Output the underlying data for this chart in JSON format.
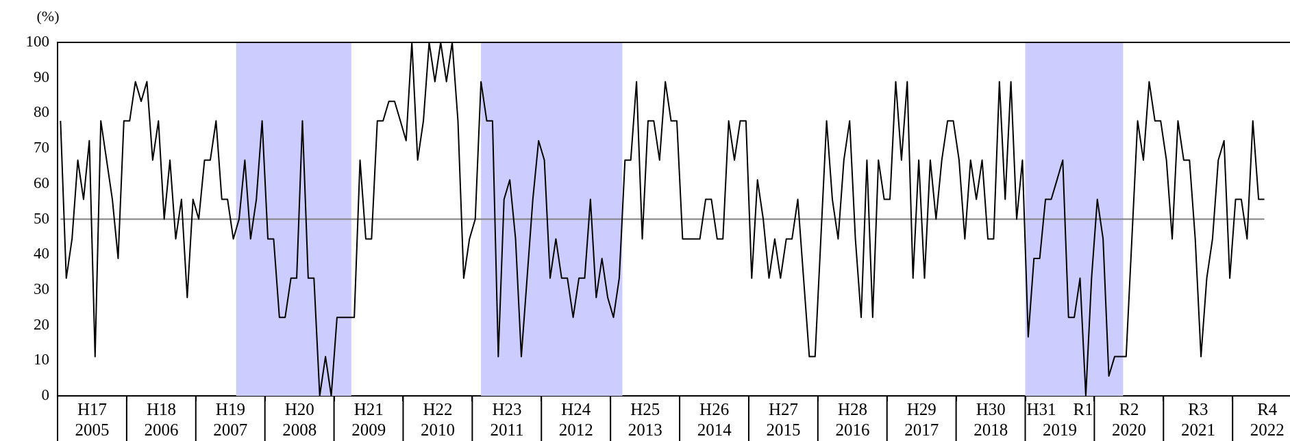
{
  "chart_data": {
    "type": "line",
    "ylabel": "(%)",
    "xlim": [
      "2004-12-16",
      "2022-10-15"
    ],
    "xticks": [
      {
        "value": "2005-06-16",
        "label": "H17\n2005"
      },
      {
        "value": "2005-12-16",
        "label": null
      },
      {
        "value": "2006-06-16",
        "label": "H18\n2006"
      },
      {
        "value": "2006-12-16",
        "label": null
      },
      {
        "value": "2007-06-16",
        "label": "H19\n2007"
      },
      {
        "value": "2007-12-16",
        "label": null
      },
      {
        "value": "2008-06-16",
        "label": "H20\n2008"
      },
      {
        "value": "2008-12-16",
        "label": null
      },
      {
        "value": "2009-06-16",
        "label": "H21\n2009"
      },
      {
        "value": "2009-12-16",
        "label": null
      },
      {
        "value": "2010-06-16",
        "label": "H22\n2010"
      },
      {
        "value": "2010-12-16",
        "label": null
      },
      {
        "value": "2011-06-16",
        "label": "H23\n2011"
      },
      {
        "value": "2011-12-16",
        "label": null
      },
      {
        "value": "2012-06-16",
        "label": "H24\n2012"
      },
      {
        "value": "2012-12-16",
        "label": null
      },
      {
        "value": "2013-06-16",
        "label": "H25\n2013"
      },
      {
        "value": "2013-12-16",
        "label": null
      },
      {
        "value": "2014-06-16",
        "label": "H26\n2014"
      },
      {
        "value": "2014-12-16",
        "label": null
      },
      {
        "value": "2015-06-16",
        "label": "H27\n2015"
      },
      {
        "value": "2015-12-16",
        "label": null
      },
      {
        "value": "2016-06-16",
        "label": "H28\n2016"
      },
      {
        "value": "2016-12-16",
        "label": null
      },
      {
        "value": "2017-06-16",
        "label": "H29\n2017"
      },
      {
        "value": "2017-12-16",
        "label": null
      },
      {
        "value": "2018-06-16",
        "label": "H30\n2018"
      },
      {
        "value": "2018-12-16",
        "label": null
      },
      {
        "value": "2019-06-16",
        "label": "H31　R1\n2019"
      },
      {
        "value": "2019-12-16",
        "label": null
      },
      {
        "value": "2020-06-16",
        "label": "R2\n2020"
      },
      {
        "value": "2020-12-16",
        "label": null
      },
      {
        "value": "2021-06-16",
        "label": "R3\n2021"
      },
      {
        "value": "2021-12-16",
        "label": null
      },
      {
        "value": "2022-06-16",
        "label": "R4\n2022"
      }
    ],
    "ylim": [
      0,
      100
    ],
    "yticks": [
      0,
      10,
      20,
      30,
      40,
      50,
      60,
      70,
      80,
      90,
      100
    ],
    "grid": false,
    "legend": false,
    "marker": "none",
    "line_style": "solid",
    "bands": [
      {
        "axis": "x",
        "from": "2007-07-16",
        "to": "2009-03-16",
        "color": "#ccccff"
      },
      {
        "axis": "x",
        "from": "2011-02",
        "to": "2013-02-16",
        "color": "#ccccff"
      },
      {
        "axis": "x",
        "from": "2018-12-16",
        "to": "2020-05-16",
        "color": "#ccccff"
      }
    ],
    "ref_lines": [
      {
        "axis": "y",
        "value": 50,
        "color": "#808080"
      }
    ],
    "x": [
      "2005-01",
      "2005-02",
      "2005-03",
      "2005-04",
      "2005-05",
      "2005-06",
      "2005-07",
      "2005-08",
      "2005-09",
      "2005-10",
      "2005-11",
      "2005-12",
      "2006-01",
      "2006-02",
      "2006-03",
      "2006-04",
      "2006-05",
      "2006-06",
      "2006-07",
      "2006-08",
      "2006-09",
      "2006-10",
      "2006-11",
      "2006-12",
      "2007-01",
      "2007-02",
      "2007-03",
      "2007-04",
      "2007-05",
      "2007-06",
      "2007-07",
      "2007-08",
      "2007-09",
      "2007-10",
      "2007-11",
      "2007-12",
      "2008-01",
      "2008-02",
      "2008-03",
      "2008-04",
      "2008-05",
      "2008-06",
      "2008-07",
      "2008-08",
      "2008-09",
      "2008-10",
      "2008-11",
      "2008-12",
      "2009-01",
      "2009-02",
      "2009-03",
      "2009-04",
      "2009-05",
      "2009-06",
      "2009-07",
      "2009-08",
      "2009-09",
      "2009-10",
      "2009-11",
      "2009-12",
      "2010-01",
      "2010-02",
      "2010-03",
      "2010-04",
      "2010-05",
      "2010-06",
      "2010-07",
      "2010-08",
      "2010-09",
      "2010-10",
      "2010-11",
      "2010-12",
      "2011-01",
      "2011-02",
      "2011-03",
      "2011-04",
      "2011-05",
      "2011-06",
      "2011-07",
      "2011-08",
      "2011-09",
      "2011-10",
      "2011-11",
      "2011-12",
      "2012-01",
      "2012-02",
      "2012-03",
      "2012-04",
      "2012-05",
      "2012-06",
      "2012-07",
      "2012-08",
      "2012-09",
      "2012-10",
      "2012-11",
      "2012-12",
      "2013-01",
      "2013-02",
      "2013-03",
      "2013-04",
      "2013-05",
      "2013-06",
      "2013-07",
      "2013-08",
      "2013-09",
      "2013-10",
      "2013-11",
      "2013-12",
      "2014-01",
      "2014-02",
      "2014-03",
      "2014-04",
      "2014-05",
      "2014-06",
      "2014-07",
      "2014-08",
      "2014-09",
      "2014-10",
      "2014-11",
      "2014-12",
      "2015-01",
      "2015-02",
      "2015-03",
      "2015-04",
      "2015-05",
      "2015-06",
      "2015-07",
      "2015-08",
      "2015-09",
      "2015-10",
      "2015-11",
      "2015-12",
      "2016-01",
      "2016-02",
      "2016-03",
      "2016-04",
      "2016-05",
      "2016-06",
      "2016-07",
      "2016-08",
      "2016-09",
      "2016-10",
      "2016-11",
      "2016-12",
      "2017-01",
      "2017-02",
      "2017-03",
      "2017-04",
      "2017-05",
      "2017-06",
      "2017-07",
      "2017-08",
      "2017-09",
      "2017-10",
      "2017-11",
      "2017-12",
      "2018-01",
      "2018-02",
      "2018-03",
      "2018-04",
      "2018-05",
      "2018-06",
      "2018-07",
      "2018-08",
      "2018-09",
      "2018-10",
      "2018-11",
      "2018-12",
      "2019-01",
      "2019-02",
      "2019-03",
      "2019-04",
      "2019-05",
      "2019-06",
      "2019-07",
      "2019-08",
      "2019-09",
      "2019-10",
      "2019-11",
      "2019-12",
      "2020-01",
      "2020-02",
      "2020-03",
      "2020-04",
      "2020-05",
      "2020-06",
      "2020-07",
      "2020-08",
      "2020-09",
      "2020-10",
      "2020-11",
      "2020-12",
      "2021-01",
      "2021-02",
      "2021-03",
      "2021-04",
      "2021-05",
      "2021-06",
      "2021-07",
      "2021-08",
      "2021-09",
      "2021-10",
      "2021-11",
      "2021-12",
      "2022-01",
      "2022-02",
      "2022-03",
      "2022-04",
      "2022-05",
      "2022-06"
    ],
    "series": [
      {
        "color": "#000000",
        "values": [
          77.8,
          33.3,
          44.4,
          66.7,
          55.6,
          72.2,
          11.1,
          77.8,
          66.7,
          55.6,
          38.9,
          77.8,
          77.8,
          88.9,
          83.3,
          88.9,
          66.7,
          77.8,
          50,
          66.7,
          44.4,
          55.6,
          27.8,
          55.6,
          50,
          66.7,
          66.7,
          77.8,
          55.6,
          55.6,
          44.4,
          50,
          66.7,
          44.4,
          55.6,
          77.8,
          44.4,
          44.4,
          22.2,
          22.2,
          33.3,
          33.3,
          77.8,
          33.3,
          33.3,
          0,
          11.1,
          0,
          22.2,
          22.2,
          22.2,
          22.2,
          66.7,
          44.4,
          44.4,
          77.8,
          77.8,
          83.3,
          83.3,
          77.8,
          72.2,
          100,
          66.7,
          77.8,
          100,
          88.9,
          100,
          88.9,
          100,
          77.8,
          33.3,
          44.4,
          50,
          88.9,
          77.8,
          77.8,
          11.1,
          55.6,
          61.1,
          44.4,
          11.1,
          33.3,
          55.6,
          72.2,
          66.7,
          33.3,
          44.4,
          33.3,
          33.3,
          22.2,
          33.3,
          33.3,
          55.6,
          27.8,
          38.9,
          27.8,
          22.2,
          33.3,
          66.7,
          66.7,
          88.9,
          44.4,
          77.8,
          77.8,
          66.7,
          88.9,
          77.8,
          77.8,
          44.4,
          44.4,
          44.4,
          44.4,
          55.6,
          55.6,
          44.4,
          44.4,
          77.8,
          66.7,
          77.8,
          77.8,
          33.3,
          61.1,
          50,
          33.3,
          44.4,
          33.3,
          44.4,
          44.4,
          55.6,
          33.3,
          11.1,
          11.1,
          44.4,
          77.8,
          55.6,
          44.4,
          66.7,
          77.8,
          44.4,
          22.2,
          66.7,
          22.2,
          66.7,
          55.6,
          55.6,
          88.9,
          66.7,
          88.9,
          33.3,
          66.7,
          33.3,
          66.7,
          50,
          66.7,
          77.8,
          77.8,
          66.7,
          44.4,
          66.7,
          55.6,
          66.7,
          44.4,
          44.4,
          88.9,
          55.6,
          88.9,
          50,
          66.7,
          16.7,
          38.9,
          38.9,
          55.6,
          55.6,
          61.1,
          66.7,
          22.2,
          22.2,
          33.3,
          0,
          33.3,
          55.6,
          44.4,
          5.6,
          11.1,
          11.1,
          11.1,
          44.4,
          77.8,
          66.7,
          88.9,
          77.8,
          77.8,
          66.7,
          44.4,
          77.8,
          66.7,
          66.7,
          44.4,
          11.1,
          33.3,
          44.4,
          66.7,
          72.2,
          33.3,
          55.6,
          55.6,
          44.4,
          77.8,
          55.6,
          55.6
        ]
      }
    ]
  }
}
